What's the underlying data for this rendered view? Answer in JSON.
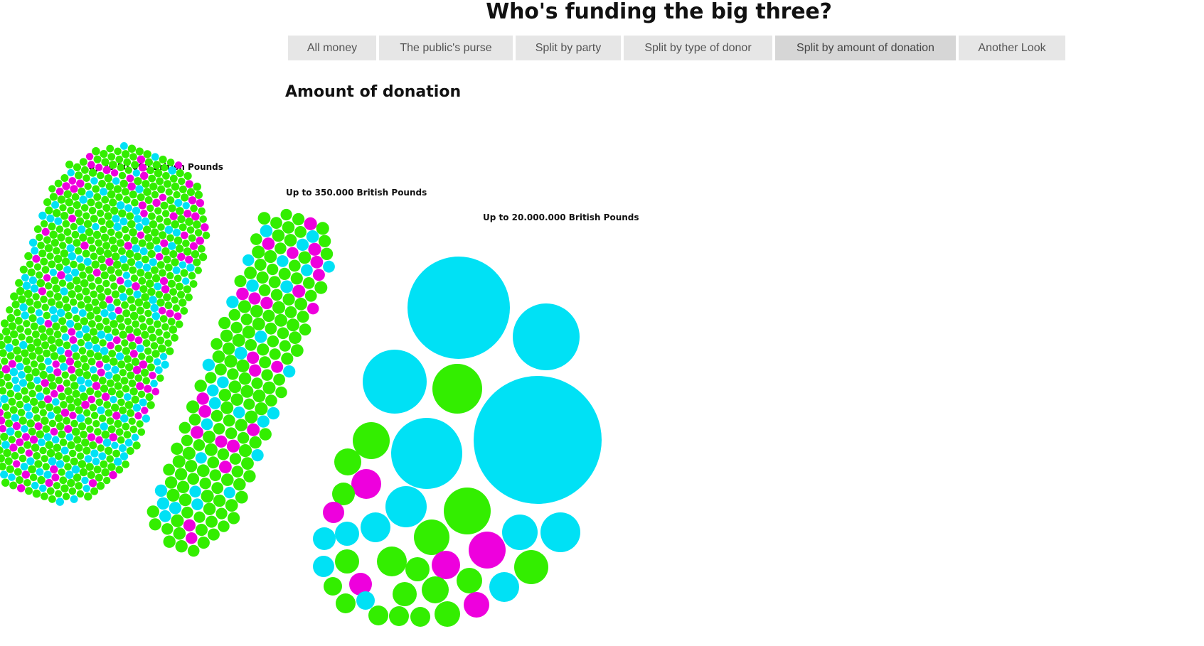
{
  "header": {
    "title": "Who's funding the big three?"
  },
  "tabs": [
    {
      "label": "All money",
      "active": false
    },
    {
      "label": "The public's purse",
      "active": false
    },
    {
      "label": "Split by party",
      "active": false
    },
    {
      "label": "Split by type of donor",
      "active": false
    },
    {
      "label": "Split by amount of donation",
      "active": true
    },
    {
      "label": "Another Look",
      "active": false
    }
  ],
  "section": {
    "heading": "Amount of donation"
  },
  "groups": {
    "small": {
      "label": "Up to 50.000 British Pounds"
    },
    "mid": {
      "label": "Up to 350.000 British Pounds"
    },
    "large": {
      "label": "Up to 20.000.000 British Pounds"
    }
  },
  "colors": {
    "green": "#33ee00",
    "cyan": "#00e1f5",
    "magenta": "#ee00dd"
  }
}
